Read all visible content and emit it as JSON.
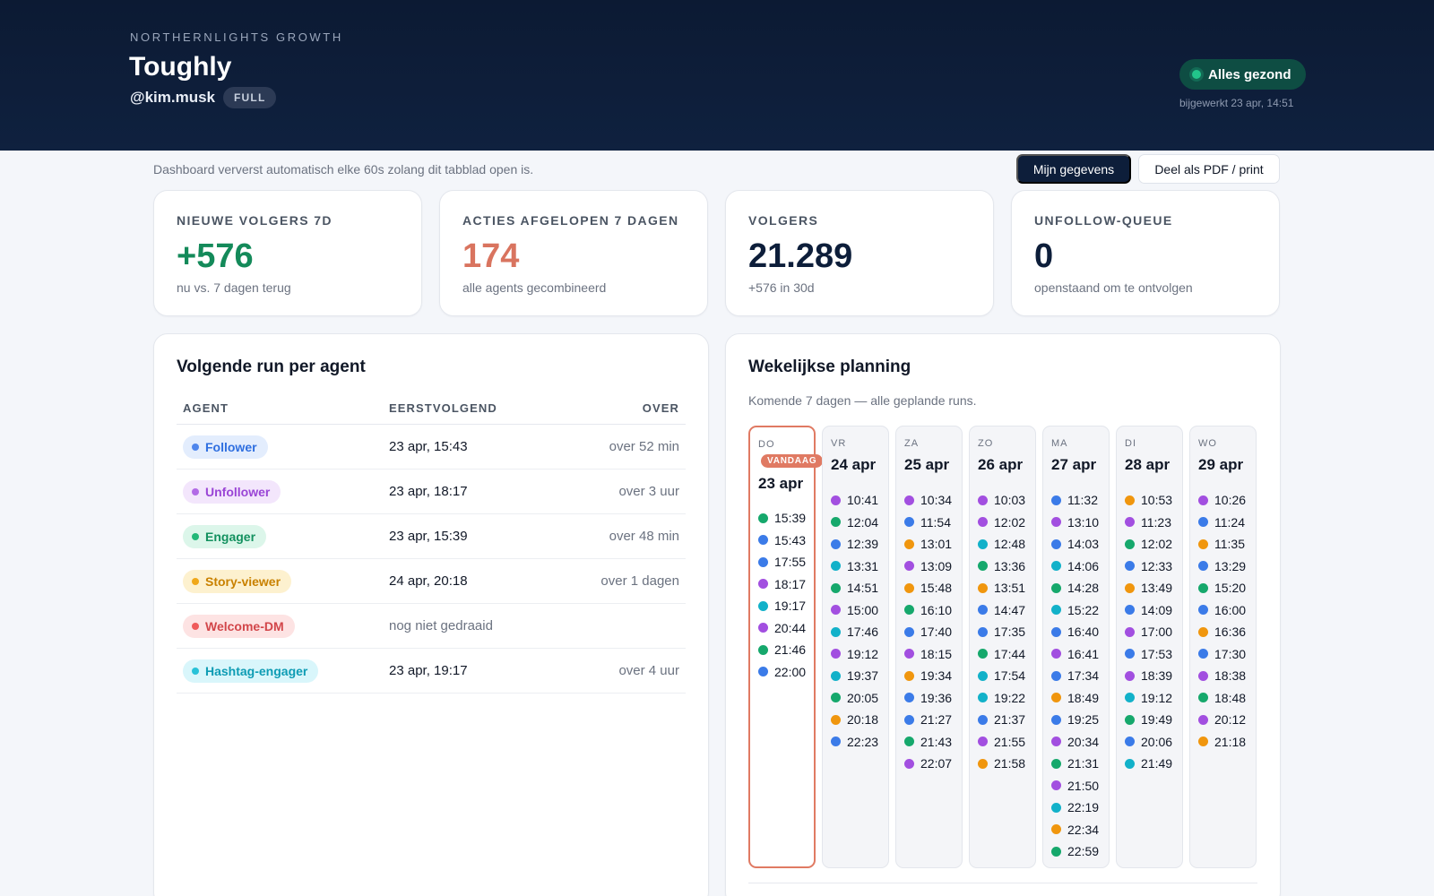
{
  "header": {
    "kicker": "NORTHERNLIGHTS GROWTH",
    "title": "Toughly",
    "handle": "@kim.musk",
    "plan_badge": "FULL",
    "health": "Alles gezond",
    "updated": "bijgewerkt 23 apr, 14:51"
  },
  "toolbar": {
    "refresh_note": "Dashboard ververst automatisch elke 60s zolang dit tabblad open is.",
    "my_data_label": "Mijn gegevens",
    "share_label": "Deel als PDF / print"
  },
  "kpis": [
    {
      "label": "NIEUWE VOLGERS 7D",
      "value": "+576",
      "sub": "nu vs. 7 dagen terug",
      "color": "#148a5a"
    },
    {
      "label": "ACTIES AFGELOPEN 7 DAGEN",
      "value": "174",
      "sub": "alle agents gecombineerd",
      "color": "#d9745f"
    },
    {
      "label": "VOLGERS",
      "value": "21.289",
      "sub": "+576 in 30d",
      "color": "#0d1e3a"
    },
    {
      "label": "UNFOLLOW-QUEUE",
      "value": "0",
      "sub": "openstaand om te ontvolgen",
      "color": "#0d1e3a"
    }
  ],
  "agents_panel": {
    "title": "Volgende run per agent",
    "columns": {
      "agent": "AGENT",
      "next": "EERSTVOLGEND",
      "over": "OVER"
    },
    "rows": [
      {
        "agent": "Follower",
        "next": "23 apr, 15:43",
        "over": "over 52 min",
        "fg": "#2f6fe0",
        "bg": "#e3edfd",
        "dot": "#4f86ec"
      },
      {
        "agent": "Unfollower",
        "next": "23 apr, 18:17",
        "over": "over 3 uur",
        "fg": "#9a45d6",
        "bg": "#f3e6fc",
        "dot": "#b26ae6"
      },
      {
        "agent": "Engager",
        "next": "23 apr, 15:39",
        "over": "over 48 min",
        "fg": "#13915f",
        "bg": "#dcf6ea",
        "dot": "#22b878"
      },
      {
        "agent": "Story-viewer",
        "next": "24 apr, 20:18",
        "over": "over 1 dagen",
        "fg": "#c98100",
        "bg": "#fdf1cf",
        "dot": "#f0a81a"
      },
      {
        "agent": "Welcome-DM",
        "next": "nog niet gedraaid",
        "over": "",
        "fg": "#d2464a",
        "bg": "#fde3e3",
        "dot": "#ef5a5a"
      },
      {
        "agent": "Hashtag-engager",
        "next": "23 apr, 19:17",
        "over": "over 4 uur",
        "fg": "#0e9cb4",
        "bg": "#d9f6fb",
        "dot": "#28c2d8"
      }
    ]
  },
  "planning": {
    "title": "Wekelijkse planning",
    "subtitle": "Komende 7 dagen — alle geplande runs.",
    "today_badge": "VANDAAG",
    "colors": {
      "blue": "#3b7be8",
      "purple": "#a24fe0",
      "green": "#16a86c",
      "teal": "#12b1c9",
      "orange": "#f0960e"
    },
    "days": [
      {
        "dow": "DO",
        "date": "23 apr",
        "today": true,
        "runs": [
          {
            "t": "15:39",
            "c": "green"
          },
          {
            "t": "15:43",
            "c": "blue"
          },
          {
            "t": "17:55",
            "c": "blue"
          },
          {
            "t": "18:17",
            "c": "purple"
          },
          {
            "t": "19:17",
            "c": "teal"
          },
          {
            "t": "20:44",
            "c": "purple"
          },
          {
            "t": "21:46",
            "c": "green"
          },
          {
            "t": "22:00",
            "c": "blue"
          }
        ]
      },
      {
        "dow": "VR",
        "date": "24 apr",
        "today": false,
        "runs": [
          {
            "t": "10:41",
            "c": "purple"
          },
          {
            "t": "12:04",
            "c": "green"
          },
          {
            "t": "12:39",
            "c": "blue"
          },
          {
            "t": "13:31",
            "c": "teal"
          },
          {
            "t": "14:51",
            "c": "green"
          },
          {
            "t": "15:00",
            "c": "purple"
          },
          {
            "t": "17:46",
            "c": "teal"
          },
          {
            "t": "19:12",
            "c": "purple"
          },
          {
            "t": "19:37",
            "c": "teal"
          },
          {
            "t": "20:05",
            "c": "green"
          },
          {
            "t": "20:18",
            "c": "orange"
          },
          {
            "t": "22:23",
            "c": "blue"
          }
        ]
      },
      {
        "dow": "ZA",
        "date": "25 apr",
        "today": false,
        "runs": [
          {
            "t": "10:34",
            "c": "purple"
          },
          {
            "t": "11:54",
            "c": "blue"
          },
          {
            "t": "13:01",
            "c": "orange"
          },
          {
            "t": "13:09",
            "c": "purple"
          },
          {
            "t": "15:48",
            "c": "orange"
          },
          {
            "t": "16:10",
            "c": "green"
          },
          {
            "t": "17:40",
            "c": "blue"
          },
          {
            "t": "18:15",
            "c": "purple"
          },
          {
            "t": "19:34",
            "c": "orange"
          },
          {
            "t": "19:36",
            "c": "blue"
          },
          {
            "t": "21:27",
            "c": "blue"
          },
          {
            "t": "21:43",
            "c": "green"
          },
          {
            "t": "22:07",
            "c": "purple"
          }
        ]
      },
      {
        "dow": "ZO",
        "date": "26 apr",
        "today": false,
        "runs": [
          {
            "t": "10:03",
            "c": "purple"
          },
          {
            "t": "12:02",
            "c": "purple"
          },
          {
            "t": "12:48",
            "c": "teal"
          },
          {
            "t": "13:36",
            "c": "green"
          },
          {
            "t": "13:51",
            "c": "orange"
          },
          {
            "t": "14:47",
            "c": "blue"
          },
          {
            "t": "17:35",
            "c": "blue"
          },
          {
            "t": "17:44",
            "c": "green"
          },
          {
            "t": "17:54",
            "c": "teal"
          },
          {
            "t": "19:22",
            "c": "teal"
          },
          {
            "t": "21:37",
            "c": "blue"
          },
          {
            "t": "21:55",
            "c": "purple"
          },
          {
            "t": "21:58",
            "c": "orange"
          }
        ]
      },
      {
        "dow": "MA",
        "date": "27 apr",
        "today": false,
        "runs": [
          {
            "t": "11:32",
            "c": "blue"
          },
          {
            "t": "13:10",
            "c": "purple"
          },
          {
            "t": "14:03",
            "c": "blue"
          },
          {
            "t": "14:06",
            "c": "teal"
          },
          {
            "t": "14:28",
            "c": "green"
          },
          {
            "t": "15:22",
            "c": "teal"
          },
          {
            "t": "16:40",
            "c": "blue"
          },
          {
            "t": "16:41",
            "c": "purple"
          },
          {
            "t": "17:34",
            "c": "blue"
          },
          {
            "t": "18:49",
            "c": "orange"
          },
          {
            "t": "19:25",
            "c": "blue"
          },
          {
            "t": "20:34",
            "c": "purple"
          },
          {
            "t": "21:31",
            "c": "green"
          },
          {
            "t": "21:50",
            "c": "purple"
          },
          {
            "t": "22:19",
            "c": "teal"
          },
          {
            "t": "22:34",
            "c": "orange"
          },
          {
            "t": "22:59",
            "c": "green"
          }
        ]
      },
      {
        "dow": "DI",
        "date": "28 apr",
        "today": false,
        "runs": [
          {
            "t": "10:53",
            "c": "orange"
          },
          {
            "t": "11:23",
            "c": "purple"
          },
          {
            "t": "12:02",
            "c": "green"
          },
          {
            "t": "12:33",
            "c": "blue"
          },
          {
            "t": "13:49",
            "c": "orange"
          },
          {
            "t": "14:09",
            "c": "blue"
          },
          {
            "t": "17:00",
            "c": "purple"
          },
          {
            "t": "17:53",
            "c": "blue"
          },
          {
            "t": "18:39",
            "c": "purple"
          },
          {
            "t": "19:12",
            "c": "teal"
          },
          {
            "t": "19:49",
            "c": "green"
          },
          {
            "t": "20:06",
            "c": "blue"
          },
          {
            "t": "21:49",
            "c": "teal"
          }
        ]
      },
      {
        "dow": "WO",
        "date": "29 apr",
        "today": false,
        "runs": [
          {
            "t": "10:26",
            "c": "purple"
          },
          {
            "t": "11:24",
            "c": "blue"
          },
          {
            "t": "11:35",
            "c": "orange"
          },
          {
            "t": "13:29",
            "c": "blue"
          },
          {
            "t": "15:20",
            "c": "green"
          },
          {
            "t": "16:00",
            "c": "blue"
          },
          {
            "t": "16:36",
            "c": "orange"
          },
          {
            "t": "17:30",
            "c": "blue"
          },
          {
            "t": "18:38",
            "c": "purple"
          },
          {
            "t": "18:48",
            "c": "green"
          },
          {
            "t": "20:12",
            "c": "purple"
          },
          {
            "t": "21:18",
            "c": "orange"
          }
        ]
      }
    ]
  }
}
